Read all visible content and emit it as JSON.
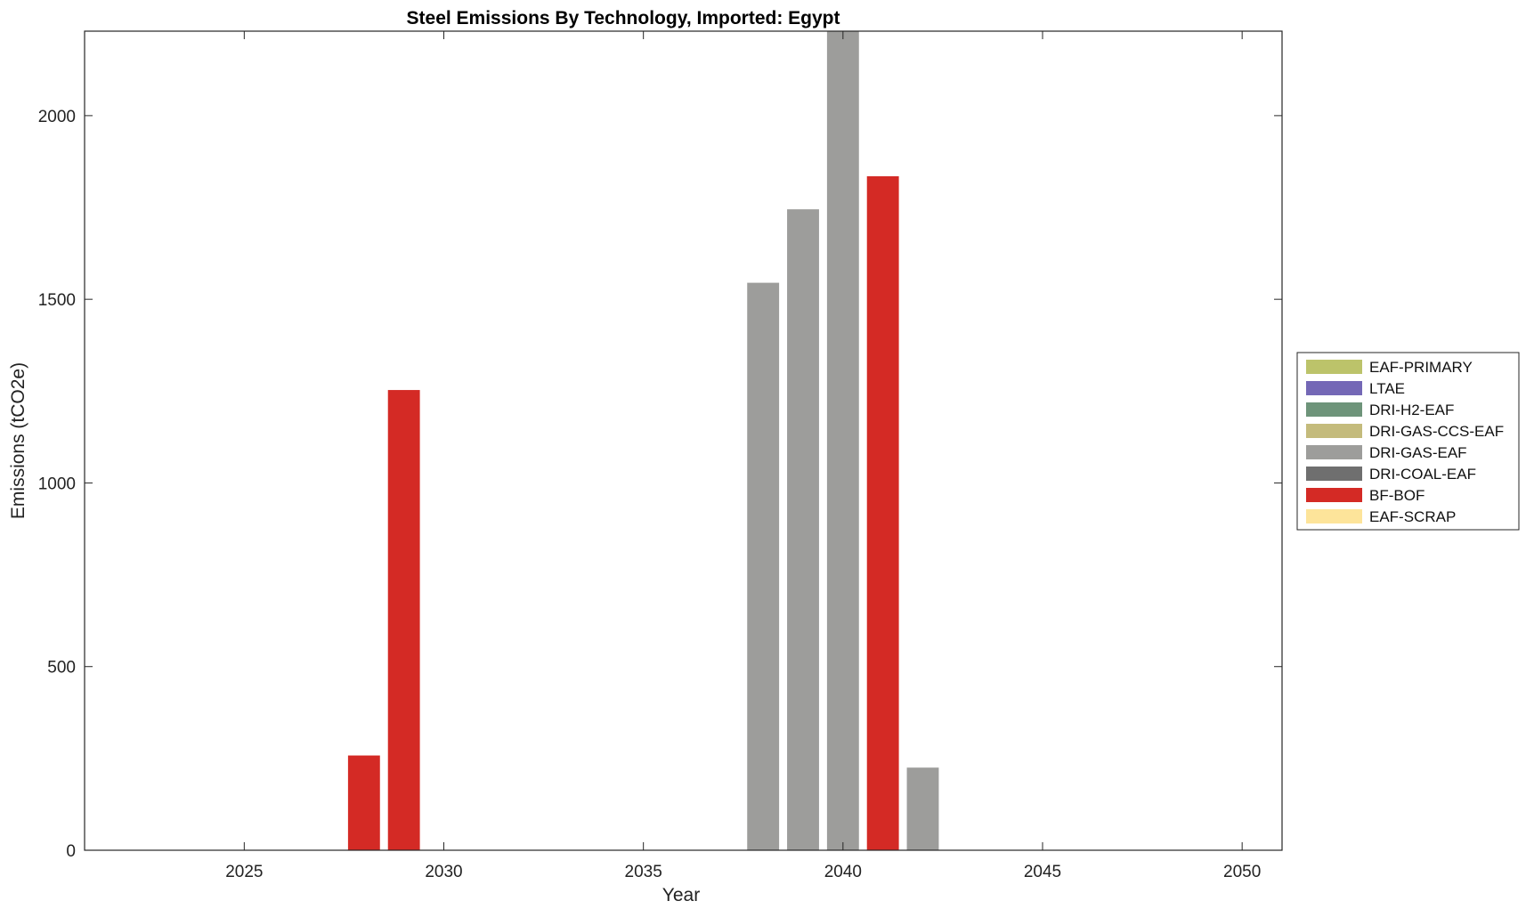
{
  "chart_data": {
    "type": "bar",
    "title": "Steel Emissions By Technology, Imported: Egypt",
    "xlabel": "Year",
    "ylabel": "Emissions (tCO2e)",
    "xlim": [
      2021,
      2051
    ],
    "ylim": [
      0,
      2230
    ],
    "xticks": [
      "2025",
      "2030",
      "2035",
      "2040",
      "2045",
      "2050"
    ],
    "yticks": [
      "0",
      "500",
      "1000",
      "1500",
      "2000"
    ],
    "grid": false,
    "legend_position": "right",
    "legend": [
      {
        "name": "EAF-PRIMARY",
        "color": "#bcc36a"
      },
      {
        "name": "LTAE",
        "color": "#7468b6"
      },
      {
        "name": "DRI-H2-EAF",
        "color": "#6e947a"
      },
      {
        "name": "DRI-GAS-CCS-EAF",
        "color": "#c4bb7c"
      },
      {
        "name": "DRI-GAS-EAF",
        "color": "#9d9d9b"
      },
      {
        "name": "DRI-COAL-EAF",
        "color": "#6f6f6f"
      },
      {
        "name": "BF-BOF",
        "color": "#d42a25"
      },
      {
        "name": "EAF-SCRAP",
        "color": "#fde49a"
      }
    ],
    "bars": [
      {
        "x": 2028,
        "value": 258,
        "technology": "BF-BOF"
      },
      {
        "x": 2029,
        "value": 1253,
        "technology": "BF-BOF"
      },
      {
        "x": 2038,
        "value": 1545,
        "technology": "DRI-GAS-EAF"
      },
      {
        "x": 2039,
        "value": 1745,
        "technology": "DRI-GAS-EAF"
      },
      {
        "x": 2040,
        "value": 2230,
        "technology": "DRI-GAS-EAF"
      },
      {
        "x": 2041,
        "value": 1835,
        "technology": "BF-BOF"
      },
      {
        "x": 2042,
        "value": 225,
        "technology": "DRI-GAS-EAF"
      }
    ]
  }
}
